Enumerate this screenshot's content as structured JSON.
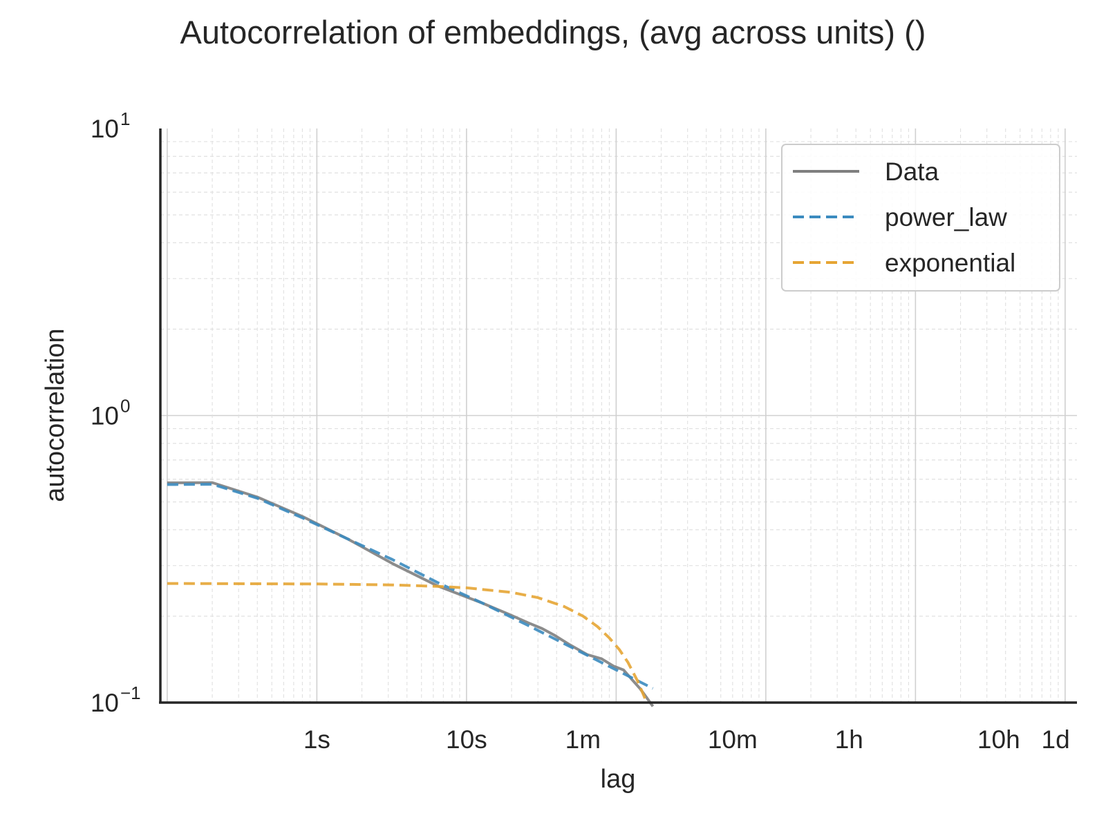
{
  "chart_data": {
    "type": "line",
    "title": "Autocorrelation of embeddings, (avg across units) ()",
    "xlabel": "lag",
    "ylabel": "autocorrelation",
    "x_scale": "log",
    "y_scale": "log",
    "x_units": "seconds",
    "xlim": [
      0.09,
      120000
    ],
    "ylim": [
      0.1,
      10
    ],
    "grid": true,
    "legend_position": "top-right",
    "x_ticks": [
      {
        "value": 1,
        "label": "1s"
      },
      {
        "value": 10,
        "label": "10s"
      },
      {
        "value": 60,
        "label": "1m"
      },
      {
        "value": 600,
        "label": "10m"
      },
      {
        "value": 3600,
        "label": "1h"
      },
      {
        "value": 36000,
        "label": "10h"
      },
      {
        "value": 86400,
        "label": "1d"
      }
    ],
    "y_ticks": [
      {
        "value": 10,
        "base": "10",
        "exp": "1"
      },
      {
        "value": 1,
        "base": "10",
        "exp": "0"
      },
      {
        "value": 0.1,
        "base": "10",
        "exp": "−1"
      }
    ],
    "series": [
      {
        "name": "Data",
        "color": "#7f7f7f",
        "style": "solid",
        "x": [
          0.1,
          0.2,
          0.4,
          0.8,
          1.6,
          3.2,
          6.4,
          12.8,
          19.2,
          25.6,
          32,
          38.4,
          48,
          64,
          80,
          96,
          112,
          128,
          144,
          160,
          176
        ],
        "y": [
          0.583,
          0.584,
          0.52,
          0.445,
          0.372,
          0.305,
          0.255,
          0.222,
          0.203,
          0.19,
          0.181,
          0.172,
          0.16,
          0.147,
          0.142,
          0.134,
          0.13,
          0.12,
          0.112,
          0.104,
          0.097
        ]
      },
      {
        "name": "power_law",
        "color": "#3b8bbf",
        "style": "dashed",
        "x": [
          0.1,
          0.2,
          0.4,
          0.8,
          1.6,
          3.2,
          6.4,
          12.8,
          25.6,
          51.2,
          100,
          176
        ],
        "y": [
          0.575,
          0.576,
          0.515,
          0.44,
          0.372,
          0.315,
          0.262,
          0.222,
          0.186,
          0.155,
          0.13,
          0.112
        ]
      },
      {
        "name": "exponential",
        "color": "#e6a534",
        "style": "dashed",
        "x": [
          0.1,
          1,
          3.2,
          6.4,
          10,
          20,
          30,
          45,
          60,
          75,
          90,
          105,
          120,
          140,
          160
        ],
        "y": [
          0.26,
          0.259,
          0.257,
          0.254,
          0.251,
          0.242,
          0.232,
          0.216,
          0.2,
          0.184,
          0.168,
          0.153,
          0.138,
          0.118,
          0.1
        ]
      }
    ]
  }
}
